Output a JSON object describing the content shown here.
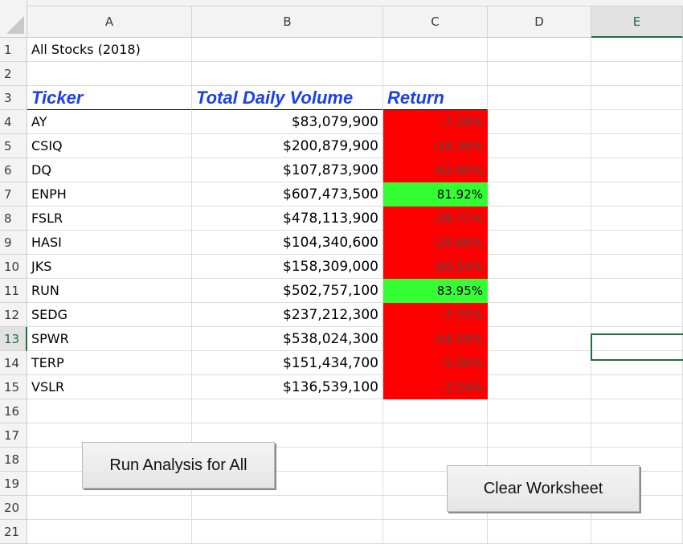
{
  "columns": [
    "A",
    "B",
    "C",
    "D",
    "E"
  ],
  "rows": [
    "1",
    "2",
    "3",
    "4",
    "5",
    "6",
    "7",
    "8",
    "9",
    "10",
    "11",
    "12",
    "13",
    "14",
    "15",
    "16",
    "17",
    "18",
    "19",
    "20",
    "21"
  ],
  "title_cell": "All Stocks (2018)",
  "headers": {
    "ticker": "Ticker",
    "volume": "Total Daily Volume",
    "return": "Return"
  },
  "data_rows": [
    {
      "ticker": "AY",
      "volume": "$83,079,900",
      "return": "-7.28%",
      "status": "negative"
    },
    {
      "ticker": "CSIQ",
      "volume": "$200,879,900",
      "return": "-16.34%",
      "status": "negative"
    },
    {
      "ticker": "DQ",
      "volume": "$107,873,900",
      "return": "-62.60%",
      "status": "negative"
    },
    {
      "ticker": "ENPH",
      "volume": "$607,473,500",
      "return": "81.92%",
      "status": "positive"
    },
    {
      "ticker": "FSLR",
      "volume": "$478,113,900",
      "return": "-39.71%",
      "status": "negative"
    },
    {
      "ticker": "HASI",
      "volume": "$104,340,600",
      "return": "-20.66%",
      "status": "negative"
    },
    {
      "ticker": "JKS",
      "volume": "$158,309,000",
      "return": "-60.53%",
      "status": "negative"
    },
    {
      "ticker": "RUN",
      "volume": "$502,757,100",
      "return": "83.95%",
      "status": "positive"
    },
    {
      "ticker": "SEDG",
      "volume": "$237,212,300",
      "return": "-7.75%",
      "status": "negative"
    },
    {
      "ticker": "SPWR",
      "volume": "$538,024,300",
      "return": "-44.59%",
      "status": "negative"
    },
    {
      "ticker": "TERP",
      "volume": "$151,434,700",
      "return": "-5.00%",
      "status": "negative"
    },
    {
      "ticker": "VSLR",
      "volume": "$136,539,100",
      "return": "-3.54%",
      "status": "negative"
    }
  ],
  "buttons": {
    "run_analysis": "Run Analysis for All",
    "clear_worksheet": "Clear Worksheet"
  },
  "selection": {
    "active_column": "E",
    "active_row": "13"
  },
  "colors": {
    "negative": "#ff0000",
    "positive": "#33ff33",
    "header_text": "#1a3ff0",
    "selection": "#1e6e3f"
  }
}
